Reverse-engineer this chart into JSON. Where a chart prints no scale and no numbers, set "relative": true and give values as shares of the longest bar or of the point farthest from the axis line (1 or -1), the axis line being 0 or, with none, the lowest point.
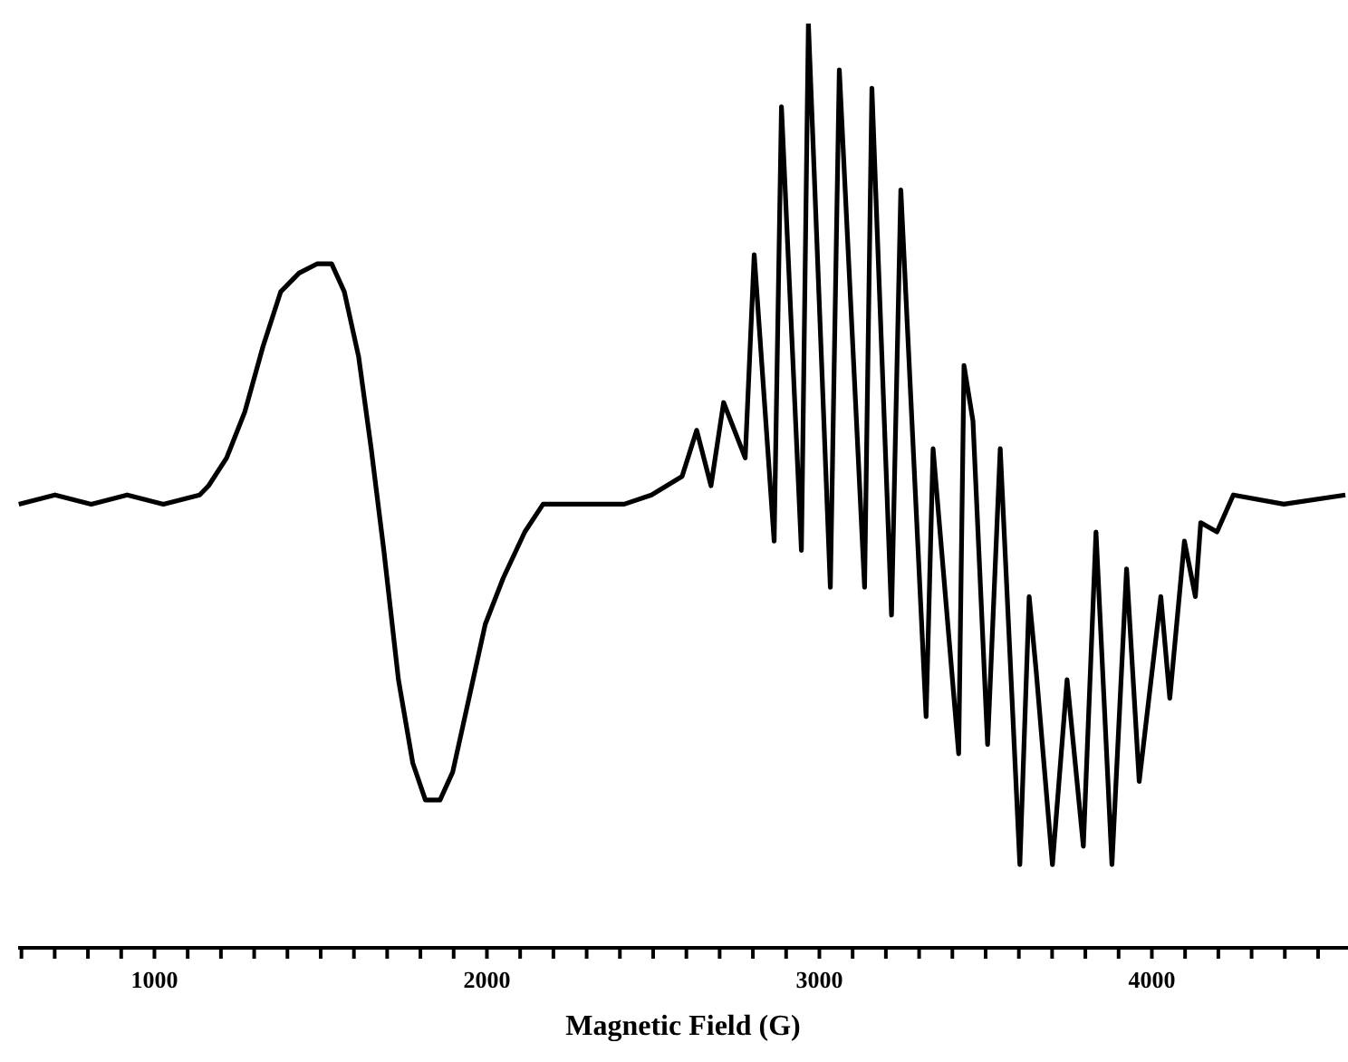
{
  "chart_data": {
    "type": "line",
    "xlabel": "Magnetic Field (G)",
    "relative": true,
    "xlim": [
      590,
      4590
    ],
    "xticks": [
      {
        "value": 600,
        "label": null
      },
      {
        "value": 700,
        "label": null
      },
      {
        "value": 800,
        "label": null
      },
      {
        "value": 900,
        "label": null
      },
      1000,
      {
        "value": 1100,
        "label": null
      },
      {
        "value": 1200,
        "label": null
      },
      {
        "value": 1300,
        "label": null
      },
      {
        "value": 1400,
        "label": null
      },
      {
        "value": 1500,
        "label": null
      },
      {
        "value": 1600,
        "label": null
      },
      {
        "value": 1700,
        "label": null
      },
      {
        "value": 1800,
        "label": null
      },
      {
        "value": 1900,
        "label": null
      },
      2000,
      {
        "value": 2100,
        "label": null
      },
      {
        "value": 2200,
        "label": null
      },
      {
        "value": 2300,
        "label": null
      },
      {
        "value": 2400,
        "label": null
      },
      {
        "value": 2500,
        "label": null
      },
      {
        "value": 2600,
        "label": null
      },
      {
        "value": 2700,
        "label": null
      },
      {
        "value": 2800,
        "label": null
      },
      {
        "value": 2900,
        "label": null
      },
      3000,
      {
        "value": 3100,
        "label": null
      },
      {
        "value": 3200,
        "label": null
      },
      {
        "value": 3300,
        "label": null
      },
      {
        "value": 3400,
        "label": null
      },
      {
        "value": 3500,
        "label": null
      },
      {
        "value": 3600,
        "label": null
      },
      {
        "value": 3700,
        "label": null
      },
      {
        "value": 3800,
        "label": null
      },
      {
        "value": 3900,
        "label": null
      },
      4000,
      {
        "value": 4100,
        "label": null
      },
      {
        "value": 4200,
        "label": null
      },
      {
        "value": 4300,
        "label": null
      },
      {
        "value": 4400,
        "label": null
      },
      {
        "value": 4500,
        "label": null
      }
    ],
    "marker": "none",
    "line_style": "solid",
    "x": [
      592,
      701,
      810,
      918,
      1027,
      1136,
      1163,
      1217,
      1272,
      1326,
      1380,
      1435,
      1489,
      1533,
      1571,
      1614,
      1652,
      1690,
      1734,
      1777,
      1815,
      1859,
      1897,
      1940,
      1995,
      2049,
      2114,
      2169,
      2277,
      2413,
      2495,
      2587,
      2631,
      2674,
      2712,
      2777,
      2804,
      2864,
      2886,
      2946,
      2967,
      3033,
      3060,
      3136,
      3158,
      3217,
      3245,
      3321,
      3342,
      3419,
      3435,
      3462,
      3506,
      3544,
      3603,
      3631,
      3652,
      3701,
      3745,
      3794,
      3832,
      3880,
      3924,
      3962,
      4027,
      4054,
      4098,
      4131,
      4147,
      4196,
      4245,
      4397,
      4582
    ],
    "series": [
      {
        "color": "#000000",
        "values": [
          0.48,
          0.49,
          0.48,
          0.49,
          0.48,
          0.49,
          0.5,
          0.53,
          0.58,
          0.65,
          0.71,
          0.73,
          0.74,
          0.74,
          0.71,
          0.64,
          0.54,
          0.43,
          0.29,
          0.2,
          0.16,
          0.16,
          0.19,
          0.26,
          0.35,
          0.4,
          0.45,
          0.48,
          0.48,
          0.48,
          0.49,
          0.51,
          0.56,
          0.5,
          0.59,
          0.53,
          0.75,
          0.44,
          0.91,
          0.43,
          1.0,
          0.39,
          0.95,
          0.39,
          0.93,
          0.36,
          0.82,
          0.25,
          0.54,
          0.21,
          0.63,
          0.57,
          0.22,
          0.54,
          0.09,
          0.38,
          0.3,
          0.09,
          0.29,
          0.11,
          0.45,
          0.09,
          0.41,
          0.18,
          0.38,
          0.27,
          0.44,
          0.38,
          0.46,
          0.45,
          0.49,
          0.48,
          0.49
        ]
      }
    ]
  }
}
